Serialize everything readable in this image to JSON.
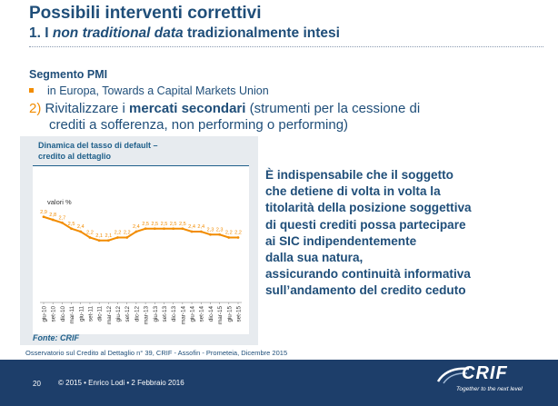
{
  "title": "Possibili interventi correttivi",
  "subtitle": {
    "prefix": "1. I ",
    "italic": "non traditional data",
    "suffix": " tradizionalmente intesi"
  },
  "segment": "Segmento PMI",
  "bullet": "in Europa, Towards a Capital Markets Union",
  "point2": {
    "number": "2)",
    "text_before": " Rivitalizzare i ",
    "bold": "mercati secondari",
    "text_after": " (strumenti per la cessione di",
    "continuation": "crediti a sofferenza, non performing o performing)"
  },
  "chart_box": {
    "header_line1": "Dinamica del tasso di default –",
    "header_line2": "credito al dettaglio",
    "source": "Fonte: CRIF"
  },
  "chart_data": {
    "type": "line",
    "title": "Dinamica del tasso di default – credito al dettaglio",
    "ylabel": "valori %",
    "ylim": [
      0,
      4
    ],
    "x": [
      "giu-10",
      "set-10",
      "dic-10",
      "mar-11",
      "giu-11",
      "set-11",
      "dic-11",
      "mar-12",
      "giu-12",
      "set-12",
      "dic-12",
      "mar-13",
      "giu-13",
      "set-13",
      "dic-13",
      "mar-14",
      "giu-14",
      "set-14",
      "dic-14",
      "mar-15",
      "giu-15",
      "set-15"
    ],
    "series": [
      {
        "values": [
          2.9,
          2.8,
          2.7,
          2.5,
          2.4,
          2.2,
          2.1,
          2.1,
          2.2,
          2.2,
          2.4,
          2.5,
          2.5,
          2.5,
          2.5,
          2.5,
          2.4,
          2.4,
          2.3,
          2.3,
          2.2,
          2.2
        ]
      }
    ],
    "data_labels": [
      "2,9",
      "2,8",
      "2,7",
      "2,5",
      "2,4",
      "2,2",
      "2,1",
      "2,1",
      "2,2",
      "2,2",
      "2,4",
      "2,5",
      "2,5",
      "2,5",
      "2,5",
      "2,5",
      "2,4",
      "2,4",
      "2,3",
      "2,3",
      "2,2",
      "2,2"
    ],
    "line_color": "#f28c00",
    "grid": false
  },
  "callout_lines": [
    "È indispensabile che il soggetto",
    "che detiene di volta in volta la",
    "titolarità della posizione soggettiva",
    "di questi crediti possa partecipare",
    "ai SIC indipendentemente",
    "dalla sua natura,",
    "assicurando continuità informativa",
    "sull’andamento del credito ceduto"
  ],
  "source_note": "Osservatorio sul Credito al Dettaglio n° 39, CRIF - Assofin - Prometeia, Dicembre 2015",
  "footer": {
    "page": "20",
    "copyright": "© 2015 • Enrico Lodi • 2 Febbraio 2016",
    "logo_text": "CRIF",
    "logo_tagline": "Together to the next level"
  },
  "colors": {
    "brand_blue": "#1f4e79",
    "accent_orange": "#f28c00",
    "footer_bg": "#1d3e6a"
  }
}
